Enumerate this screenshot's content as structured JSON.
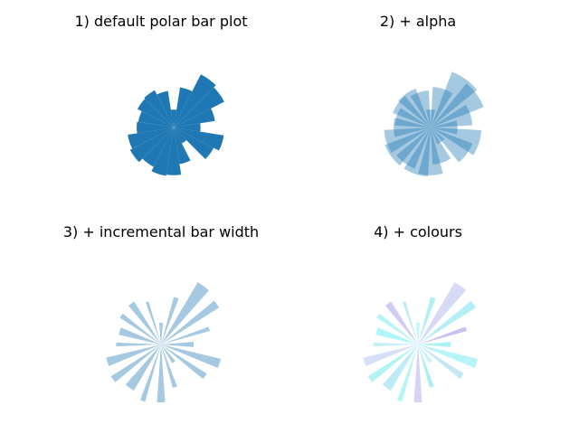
{
  "chart_data": [
    {
      "type": "bar",
      "projection": "polar",
      "title": "1) default polar bar plot",
      "radius_scale_max": 1.0,
      "theta_deg": [
        0,
        18,
        36,
        54,
        72,
        90,
        108,
        126,
        144,
        162,
        180,
        198,
        216,
        234,
        252,
        270,
        288,
        306,
        324,
        342
      ],
      "radii": [
        0.45,
        0.7,
        0.95,
        1.0,
        0.68,
        0.3,
        0.62,
        0.7,
        0.68,
        0.6,
        0.62,
        0.78,
        0.82,
        0.74,
        0.82,
        0.8,
        0.62,
        0.3,
        0.75,
        0.85
      ],
      "width_deg": 18,
      "color": "#1f77b4",
      "alpha": 1.0,
      "axis_visible": false
    },
    {
      "type": "bar",
      "projection": "polar",
      "title": "2) + alpha",
      "radius_scale_max": 1.0,
      "theta_deg": [
        0,
        18,
        36,
        54,
        72,
        90,
        108,
        126,
        144,
        162,
        180,
        198,
        216,
        234,
        252,
        270,
        288,
        306,
        324,
        342
      ],
      "radii": [
        0.45,
        0.7,
        0.95,
        1.0,
        0.68,
        0.3,
        0.62,
        0.7,
        0.68,
        0.6,
        0.62,
        0.78,
        0.82,
        0.74,
        0.82,
        0.8,
        0.62,
        0.3,
        0.75,
        0.85
      ],
      "width_deg": 30,
      "color": "#1f77b4",
      "alpha": 0.4,
      "axis_visible": false
    },
    {
      "type": "bar",
      "projection": "polar",
      "title": "3) + incremental bar width",
      "radius_scale_max": 1.0,
      "theta_deg": [
        0,
        18,
        36,
        54,
        72,
        90,
        108,
        126,
        144,
        162,
        180,
        198,
        216,
        234,
        252,
        270,
        288,
        306,
        324,
        342
      ],
      "radii": [
        0.45,
        0.7,
        0.95,
        1.0,
        0.68,
        0.3,
        0.62,
        0.7,
        0.68,
        0.6,
        0.62,
        0.78,
        0.82,
        0.74,
        0.82,
        0.8,
        0.62,
        0.3,
        0.75,
        0.85
      ],
      "widths_deg": [
        9,
        5,
        7,
        11,
        6,
        10,
        4,
        8,
        6,
        10,
        5,
        9,
        7,
        11,
        5,
        8,
        6,
        10,
        7,
        9
      ],
      "color": "#1f77b4",
      "alpha": 0.4,
      "axis_visible": false
    },
    {
      "type": "bar",
      "projection": "polar",
      "title": "4) + colours",
      "radius_scale_max": 1.0,
      "theta_deg": [
        0,
        18,
        36,
        54,
        72,
        90,
        108,
        126,
        144,
        162,
        180,
        198,
        216,
        234,
        252,
        270,
        288,
        306,
        324,
        342
      ],
      "radii": [
        0.45,
        0.7,
        0.95,
        1.0,
        0.68,
        0.3,
        0.62,
        0.7,
        0.68,
        0.6,
        0.62,
        0.78,
        0.82,
        0.74,
        0.82,
        0.8,
        0.62,
        0.3,
        0.75,
        0.85
      ],
      "widths_deg": [
        9,
        5,
        7,
        11,
        6,
        10,
        4,
        8,
        6,
        10,
        5,
        9,
        7,
        11,
        5,
        8,
        6,
        10,
        7,
        9
      ],
      "colors": [
        "#33e0e8",
        "#7a5fe0",
        "#40d8e8",
        "#9aa0e6",
        "#3ad6e0",
        "#6ee8ec",
        "#5cc8e8",
        "#8c7fe4",
        "#4ee0e6",
        "#38e8ee",
        "#6fd8e8",
        "#a0b0ea",
        "#3fe2e4",
        "#5ad0ea",
        "#44e6ec",
        "#9a90e6",
        "#30d8e0",
        "#5ee8ea",
        "#70c0e8",
        "#48e4ea"
      ],
      "alpha": 0.4,
      "axis_visible": false
    }
  ]
}
